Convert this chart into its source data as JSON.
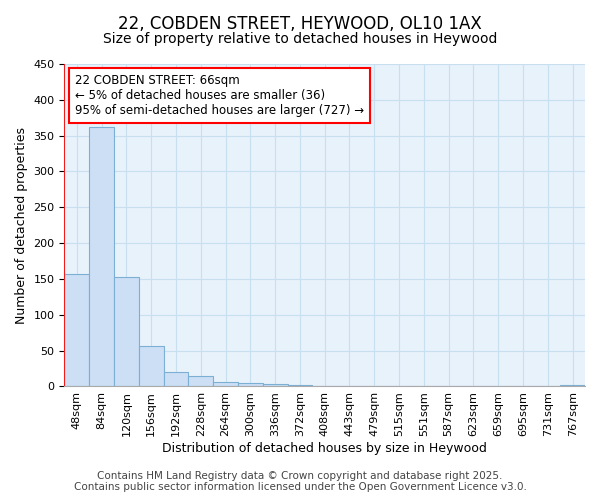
{
  "title1": "22, COBDEN STREET, HEYWOOD, OL10 1AX",
  "title2": "Size of property relative to detached houses in Heywood",
  "xlabel": "Distribution of detached houses by size in Heywood",
  "ylabel": "Number of detached properties",
  "categories": [
    "48sqm",
    "84sqm",
    "120sqm",
    "156sqm",
    "192sqm",
    "228sqm",
    "264sqm",
    "300sqm",
    "336sqm",
    "372sqm",
    "408sqm",
    "443sqm",
    "479sqm",
    "515sqm",
    "551sqm",
    "587sqm",
    "623sqm",
    "659sqm",
    "695sqm",
    "731sqm",
    "767sqm"
  ],
  "values": [
    157,
    362,
    153,
    57,
    20,
    14,
    6,
    5,
    3,
    2,
    1,
    1,
    1,
    0,
    0,
    0,
    0,
    0,
    0,
    0,
    2
  ],
  "bar_color": "#ccdff5",
  "bar_edge_color": "#7bafd4",
  "grid_color": "#c8dff0",
  "background_color": "#e8f2fb",
  "annotation_line1": "22 COBDEN STREET: 66sqm",
  "annotation_line2": "← 5% of detached houses are smaller (36)",
  "annotation_line3": "95% of semi-detached houses are larger (727) →",
  "red_line_x": -0.5,
  "footer_line1": "Contains HM Land Registry data © Crown copyright and database right 2025.",
  "footer_line2": "Contains public sector information licensed under the Open Government Licence v3.0.",
  "ylim": [
    0,
    450
  ],
  "title_fontsize": 12,
  "subtitle_fontsize": 10,
  "axis_label_fontsize": 9,
  "tick_fontsize": 8,
  "annotation_fontsize": 8.5,
  "footer_fontsize": 7.5
}
